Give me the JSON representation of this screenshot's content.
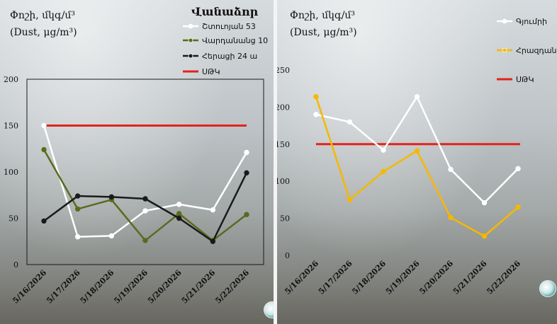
{
  "colors": {
    "limit": "#e2231a",
    "white_series": "#ffffff",
    "green_series": "#5b6a1f",
    "black_series": "#1a1a1a",
    "yellow_series": "#f5b800",
    "logo": "#4aa3a0"
  },
  "icons": [
    "logo-icon-left",
    "logo-icon-right"
  ],
  "chart_data": [
    {
      "type": "line",
      "title_line1": "Փոշի, մկգ/մ³",
      "title_line2": "(Dust, μg/m³)",
      "legend_title": "Վանաձոր",
      "legend_placement": "top-right",
      "xlabel": "",
      "ylabel": "",
      "categories": [
        "5/16/2026",
        "5/17/2026",
        "5/18/2026",
        "5/19/2026",
        "5/20/2026",
        "5/21/2026",
        "5/22/2026"
      ],
      "yticks": [
        "0",
        "50",
        "100",
        "150",
        "200"
      ],
      "ylim": [
        0,
        200
      ],
      "grid": false,
      "series": [
        {
          "name": "Շտուոյան 53",
          "color": "#ffffff",
          "values": [
            150,
            30,
            31,
            58,
            65,
            59,
            121
          ]
        },
        {
          "name": "Վարդանանց 10",
          "color": "#5b6a1f",
          "values": [
            124,
            60,
            70,
            26,
            55,
            26,
            54
          ]
        },
        {
          "name": "Հերացի 24 ա",
          "color": "#1a1a1a",
          "values": [
            47,
            74,
            73,
            71,
            50,
            25,
            99
          ]
        }
      ],
      "limit": {
        "name": "ՍԹԿ",
        "color": "#e2231a",
        "value": 150
      }
    },
    {
      "type": "line",
      "title_line1": "Փոշի, մկգ/մ³",
      "title_line2": "(Dust, μg/m³)",
      "legend_placement": "top-right",
      "xlabel": "",
      "ylabel": "",
      "categories": [
        "5/16/2026",
        "5/17/2026",
        "5/18/2026",
        "5/19/2026",
        "5/20/2026",
        "5/21/2026",
        "5/22/2026"
      ],
      "yticks": [
        "0",
        "50",
        "100",
        "150",
        "200",
        "250"
      ],
      "ylim": [
        0,
        250
      ],
      "grid": false,
      "series": [
        {
          "name": "Գյումրի",
          "color": "#ffffff",
          "values": [
            190,
            180,
            142,
            214,
            116,
            71,
            117
          ]
        },
        {
          "name": "Հրազդան",
          "color": "#f5b800",
          "values": [
            214,
            75,
            113,
            141,
            51,
            26,
            65
          ]
        }
      ],
      "limit": {
        "name": "ՍԹԿ",
        "color": "#e2231a",
        "value": 150
      }
    }
  ]
}
